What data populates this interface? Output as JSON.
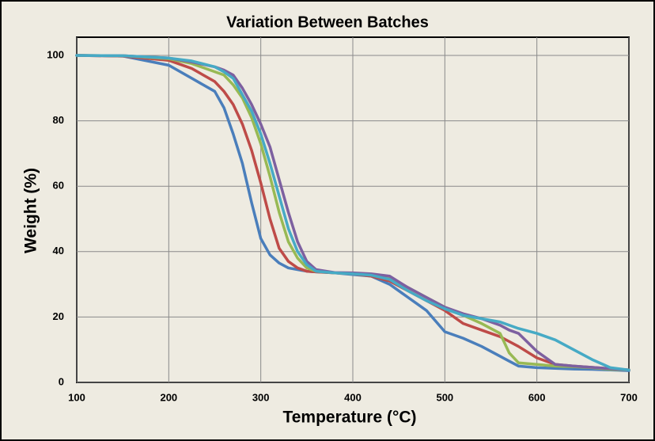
{
  "chart_data": {
    "type": "line",
    "title": "Variation Between Batches",
    "x_label": "Temperature (°C)",
    "y_label": "Weight (%)",
    "x": [
      100,
      150,
      200,
      225,
      250,
      260,
      270,
      280,
      290,
      300,
      310,
      320,
      330,
      340,
      350,
      360,
      380,
      400,
      420,
      440,
      460,
      480,
      500,
      520,
      540,
      560,
      570,
      580,
      600,
      620,
      640,
      660,
      680,
      700
    ],
    "series": [
      {
        "color": "#4a7ebb",
        "values": [
          100,
          99.8,
          97,
          93,
          89,
          84,
          76,
          67,
          55,
          44,
          39,
          36.5,
          35,
          34.5,
          34,
          33.8,
          33.5,
          33,
          32.5,
          30,
          26,
          22,
          15.5,
          13.5,
          11,
          8,
          6.5,
          5,
          4.5,
          4.3,
          4.1,
          4,
          3.8,
          3.6
        ]
      },
      {
        "color": "#be4b48",
        "values": [
          100,
          99.8,
          98.5,
          96,
          92,
          89,
          85,
          79,
          71,
          61,
          50,
          41,
          37,
          35,
          34,
          33.8,
          33.5,
          33.2,
          32.5,
          31,
          28,
          25,
          22,
          18,
          16,
          14,
          12.5,
          11,
          7.5,
          5.5,
          5,
          4.6,
          4.2,
          3.8
        ]
      },
      {
        "color": "#98b954",
        "values": [
          100,
          99.9,
          99,
          97.5,
          95,
          94,
          91,
          87,
          81,
          73,
          63,
          52,
          43,
          38,
          35,
          34,
          33.5,
          33.3,
          33,
          32,
          29,
          26,
          23,
          20.5,
          18,
          15,
          9,
          6,
          5.5,
          5,
          4.8,
          4.5,
          4,
          3.8
        ]
      },
      {
        "color": "#7d60a0",
        "values": [
          100,
          99.9,
          99.2,
          98,
          96.5,
          95.5,
          94,
          90,
          85,
          79,
          72,
          62,
          52,
          43,
          37,
          34.5,
          33.6,
          33.5,
          33.2,
          32.5,
          29,
          26,
          23,
          21,
          19.5,
          17.5,
          16,
          15,
          9.5,
          5.5,
          5,
          4.6,
          4.2,
          3.8
        ]
      },
      {
        "color": "#46aac5",
        "values": [
          100,
          99.9,
          99.2,
          98.3,
          96.5,
          95,
          93,
          88,
          83,
          76,
          67,
          57,
          47,
          40,
          36,
          34,
          33.5,
          33.2,
          32.8,
          31.5,
          28,
          25,
          22.5,
          20.5,
          19.5,
          18.5,
          17.5,
          16.5,
          15,
          13,
          10,
          7,
          4.5,
          3.8
        ]
      }
    ],
    "xlim": [
      100,
      700
    ],
    "xticks": [
      100,
      200,
      300,
      400,
      500,
      600,
      700
    ],
    "ylim": [
      0,
      100
    ],
    "yticks": [
      0,
      20,
      40,
      60,
      80,
      100
    ],
    "grid": true
  }
}
